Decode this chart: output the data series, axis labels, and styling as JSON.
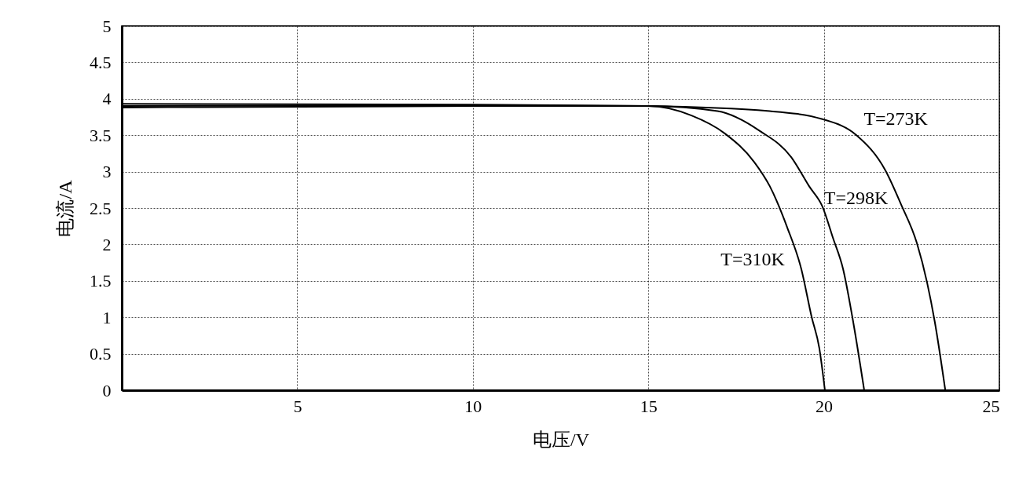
{
  "chart_data": {
    "type": "line",
    "xlabel": "电压/V",
    "ylabel": "电流/A",
    "xlim": [
      0,
      25
    ],
    "ylim": [
      0,
      5
    ],
    "xticks": [
      {
        "value": 0,
        "label": null
      },
      5,
      10,
      15,
      20,
      25
    ],
    "yticks": [
      0,
      0.5,
      1,
      1.5,
      2,
      2.5,
      3,
      3.5,
      4,
      4.5,
      5
    ],
    "grid": true,
    "legend": false,
    "marker": "none",
    "line_style": "solid",
    "series": [
      {
        "name": "T=310K",
        "color": "#000000",
        "x": [
          0,
          10,
          15,
          16.23,
          17.19,
          18.02,
          18.46,
          18.96,
          19.36,
          19.65,
          19.87,
          20.03
        ],
        "values": [
          3.88,
          3.9,
          3.9,
          3.77,
          3.52,
          3.13,
          2.8,
          2.23,
          1.66,
          1.01,
          0.58,
          0
        ]
      },
      {
        "name": "T=298K",
        "color": "#000000",
        "x": [
          0,
          10,
          15,
          16.97,
          18.17,
          19.07,
          19.58,
          19.96,
          20.26,
          20.55,
          20.81,
          21.15
        ],
        "values": [
          3.9,
          3.91,
          3.9,
          3.83,
          3.56,
          3.2,
          2.8,
          2.52,
          2.09,
          1.66,
          1.01,
          0
        ]
      },
      {
        "name": "T=273K",
        "color": "#000000",
        "x": [
          0,
          10,
          15,
          18.46,
          19.96,
          20.93,
          21.75,
          22.2,
          22.65,
          22.94,
          23.16,
          23.46
        ],
        "values": [
          3.93,
          3.92,
          3.9,
          3.83,
          3.72,
          3.5,
          3.02,
          2.55,
          2.02,
          1.48,
          0.94,
          0
        ]
      }
    ]
  }
}
